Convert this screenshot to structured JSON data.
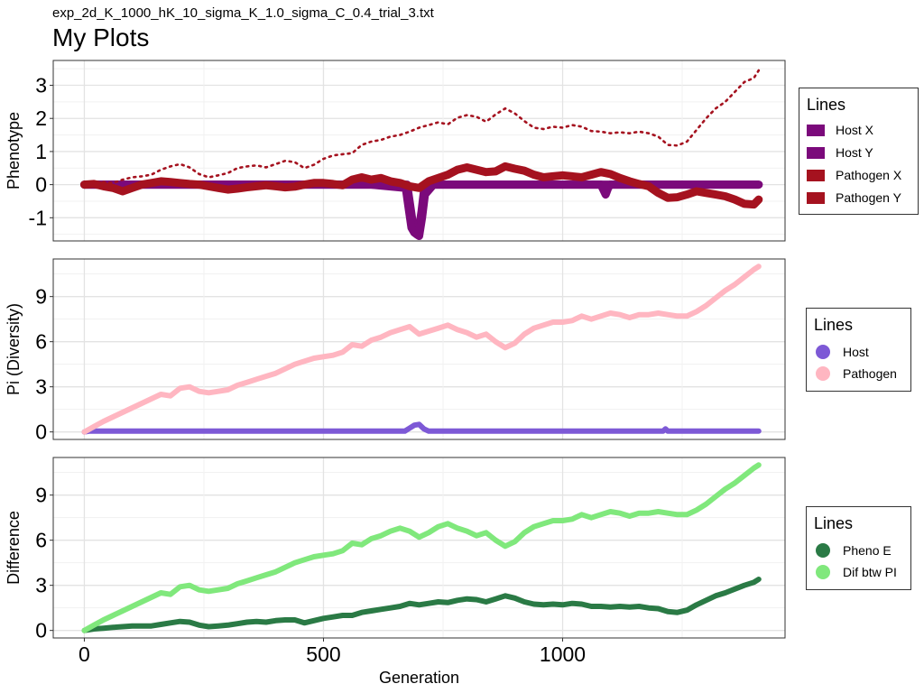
{
  "header": {
    "subtitle": "exp_2d_K_1000_hK_10_sigma_K_1.0_sigma_C_0.4_trial_3.txt",
    "title": "My Plots"
  },
  "colors": {
    "host_x": "#7b0a7b",
    "host_y": "#7b0a7b",
    "pathogen_x": "#a5121f",
    "pathogen_y": "#a5121f",
    "pi_host": "#7d59d6",
    "pi_pathogen": "#ffb6c1",
    "pheno_e": "#2a7a45",
    "dif_pi": "#80e87c"
  },
  "legends": [
    {
      "title": "Lines",
      "items": [
        "Host X",
        "Host Y",
        "Pathogen X",
        "Pathogen Y"
      ]
    },
    {
      "title": "Lines",
      "items": [
        "Host",
        "Pathogen"
      ]
    },
    {
      "title": "Lines",
      "items": [
        "Pheno E",
        "Dif btw PI"
      ]
    }
  ],
  "chart_data": [
    {
      "type": "line",
      "title": "",
      "xlabel": "",
      "ylabel": "Phenotype",
      "xlim": [
        -65,
        1465
      ],
      "ylim": [
        -1.7,
        3.75
      ],
      "grid": true,
      "legend_position": "right",
      "yticks": [
        -1,
        0,
        1,
        2,
        3
      ],
      "ytick_labels": [
        "-1",
        "0",
        "1",
        "2",
        "3"
      ],
      "x_gridlines": [
        0,
        500,
        1000
      ],
      "series": [
        {
          "name": "Host X",
          "style": "thick",
          "x": [
            0,
            100,
            200,
            300,
            400,
            500,
            600,
            660,
            675,
            680,
            686,
            690,
            694,
            700,
            705,
            710,
            725,
            800,
            900,
            1000,
            1080,
            1085,
            1090,
            1095,
            1100,
            1200,
            1300,
            1410
          ],
          "values": [
            0,
            0,
            0,
            0,
            0,
            0,
            0,
            0,
            0,
            -0.5,
            -1.1,
            -1.3,
            -1.4,
            -1.3,
            -0.8,
            -0.2,
            0,
            0,
            0,
            0,
            0,
            -0.15,
            -0.3,
            -0.1,
            0,
            0,
            0,
            0
          ]
        },
        {
          "name": "Host Y",
          "style": "thick",
          "x": [
            0,
            100,
            200,
            300,
            400,
            500,
            600,
            672,
            678,
            684,
            690,
            695,
            700,
            706,
            712,
            730,
            800,
            900,
            1000,
            1100,
            1200,
            1300,
            1410
          ],
          "values": [
            0,
            0,
            0,
            0,
            0,
            0,
            0,
            -0.1,
            -0.7,
            -1.3,
            -1.45,
            -1.5,
            -1.55,
            -1.0,
            -0.3,
            0,
            0,
            0,
            0,
            0,
            0,
            0,
            0
          ]
        },
        {
          "name": "Pathogen X",
          "style": "dotted",
          "x": [
            0,
            20,
            40,
            60,
            80,
            100,
            120,
            140,
            160,
            180,
            200,
            220,
            240,
            260,
            280,
            300,
            320,
            340,
            360,
            380,
            400,
            420,
            440,
            460,
            480,
            500,
            520,
            540,
            560,
            580,
            600,
            620,
            640,
            660,
            680,
            700,
            720,
            740,
            760,
            780,
            800,
            820,
            840,
            860,
            880,
            900,
            920,
            940,
            960,
            980,
            1000,
            1020,
            1040,
            1060,
            1080,
            1100,
            1120,
            1140,
            1160,
            1180,
            1200,
            1220,
            1240,
            1260,
            1280,
            1300,
            1320,
            1340,
            1360,
            1380,
            1400,
            1410
          ],
          "values": [
            0,
            0.05,
            0.08,
            0.05,
            0.15,
            0.22,
            0.25,
            0.3,
            0.45,
            0.55,
            0.62,
            0.52,
            0.32,
            0.22,
            0.28,
            0.35,
            0.5,
            0.55,
            0.58,
            0.52,
            0.62,
            0.72,
            0.68,
            0.5,
            0.6,
            0.78,
            0.88,
            0.92,
            0.95,
            1.2,
            1.3,
            1.35,
            1.45,
            1.5,
            1.6,
            1.72,
            1.8,
            1.88,
            1.82,
            2.02,
            2.1,
            2.05,
            1.9,
            2.12,
            2.3,
            2.15,
            1.92,
            1.72,
            1.68,
            1.75,
            1.72,
            1.8,
            1.75,
            1.62,
            1.6,
            1.55,
            1.58,
            1.55,
            1.6,
            1.55,
            1.45,
            1.2,
            1.18,
            1.3,
            1.65,
            2.0,
            2.3,
            2.5,
            2.8,
            3.1,
            3.22,
            3.45
          ]
        },
        {
          "name": "Pathogen Y",
          "style": "thick",
          "x": [
            0,
            20,
            40,
            60,
            80,
            100,
            120,
            140,
            160,
            180,
            200,
            220,
            240,
            260,
            280,
            300,
            320,
            340,
            360,
            380,
            400,
            420,
            440,
            460,
            480,
            500,
            520,
            540,
            560,
            580,
            600,
            620,
            640,
            660,
            680,
            700,
            720,
            740,
            760,
            780,
            800,
            820,
            840,
            860,
            880,
            900,
            920,
            940,
            960,
            980,
            1000,
            1020,
            1040,
            1060,
            1080,
            1100,
            1120,
            1140,
            1160,
            1180,
            1200,
            1220,
            1240,
            1260,
            1280,
            1300,
            1320,
            1340,
            1360,
            1380,
            1400,
            1410
          ],
          "values": [
            0,
            0.02,
            -0.05,
            -0.1,
            -0.2,
            -0.1,
            0,
            0.05,
            0.1,
            0.08,
            0.05,
            0.02,
            0,
            -0.05,
            -0.1,
            -0.15,
            -0.12,
            -0.08,
            -0.05,
            -0.02,
            -0.05,
            -0.08,
            -0.06,
            0,
            0.05,
            0.05,
            0.02,
            -0.02,
            0.15,
            0.22,
            0.15,
            0.2,
            0.1,
            0.05,
            -0.05,
            -0.1,
            0.1,
            0.2,
            0.3,
            0.45,
            0.52,
            0.45,
            0.38,
            0.4,
            0.55,
            0.48,
            0.42,
            0.3,
            0.22,
            0.25,
            0.28,
            0.25,
            0.22,
            0.3,
            0.38,
            0.32,
            0.2,
            0.1,
            0.02,
            -0.05,
            -0.25,
            -0.4,
            -0.38,
            -0.3,
            -0.2,
            -0.25,
            -0.3,
            -0.35,
            -0.45,
            -0.58,
            -0.6,
            -0.45
          ]
        }
      ]
    },
    {
      "type": "line",
      "title": "",
      "xlabel": "",
      "ylabel": "Pi (Diversity)",
      "xlim": [
        -65,
        1465
      ],
      "ylim": [
        -0.5,
        11.5
      ],
      "grid": true,
      "legend_position": "right",
      "yticks": [
        0,
        3,
        6,
        9
      ],
      "ytick_labels": [
        "0",
        "3",
        "6",
        "9"
      ],
      "x_gridlines": [
        0,
        500,
        1000
      ],
      "series": [
        {
          "name": "Host",
          "x": [
            0,
            10,
            100,
            200,
            300,
            400,
            500,
            600,
            670,
            680,
            690,
            700,
            710,
            720,
            800,
            900,
            1000,
            1100,
            1210,
            1215,
            1220,
            1300,
            1410
          ],
          "values": [
            0,
            0.05,
            0.05,
            0.05,
            0.05,
            0.05,
            0.05,
            0.05,
            0.05,
            0.25,
            0.45,
            0.5,
            0.2,
            0.05,
            0.05,
            0.05,
            0.05,
            0.05,
            0.05,
            0.2,
            0.05,
            0.05,
            0.05
          ]
        },
        {
          "name": "Pathogen",
          "x": [
            0,
            20,
            40,
            60,
            80,
            100,
            120,
            140,
            160,
            180,
            200,
            220,
            240,
            260,
            280,
            300,
            320,
            340,
            360,
            380,
            400,
            420,
            440,
            460,
            480,
            500,
            520,
            540,
            560,
            580,
            600,
            620,
            640,
            660,
            680,
            700,
            720,
            740,
            760,
            780,
            800,
            820,
            840,
            860,
            880,
            900,
            920,
            940,
            960,
            980,
            1000,
            1020,
            1040,
            1060,
            1080,
            1100,
            1120,
            1140,
            1160,
            1180,
            1200,
            1220,
            1240,
            1260,
            1280,
            1300,
            1320,
            1340,
            1360,
            1380,
            1400,
            1410
          ],
          "values": [
            0,
            0.35,
            0.7,
            1.0,
            1.3,
            1.6,
            1.9,
            2.2,
            2.5,
            2.4,
            2.9,
            3.0,
            2.7,
            2.6,
            2.7,
            2.8,
            3.1,
            3.3,
            3.5,
            3.7,
            3.9,
            4.2,
            4.5,
            4.7,
            4.9,
            5.0,
            5.1,
            5.3,
            5.8,
            5.7,
            6.1,
            6.3,
            6.6,
            6.8,
            7.0,
            6.5,
            6.7,
            6.9,
            7.1,
            6.8,
            6.6,
            6.3,
            6.5,
            6.0,
            5.6,
            5.9,
            6.5,
            6.9,
            7.1,
            7.3,
            7.3,
            7.4,
            7.7,
            7.5,
            7.7,
            7.9,
            7.8,
            7.6,
            7.8,
            7.8,
            7.9,
            7.8,
            7.7,
            7.7,
            8.0,
            8.4,
            8.9,
            9.4,
            9.8,
            10.3,
            10.8,
            11.0
          ]
        }
      ]
    },
    {
      "type": "line",
      "title": "",
      "xlabel": "Generation",
      "ylabel": "Difference",
      "xlim": [
        -65,
        1465
      ],
      "ylim": [
        -0.5,
        11.5
      ],
      "grid": true,
      "legend_position": "right",
      "yticks": [
        0,
        3,
        6,
        9
      ],
      "ytick_labels": [
        "0",
        "3",
        "6",
        "9"
      ],
      "xticks": [
        0,
        500,
        1000
      ],
      "xtick_labels": [
        "0",
        "500",
        "1000"
      ],
      "series": [
        {
          "name": "Pheno E",
          "x": [
            0,
            20,
            40,
            60,
            80,
            100,
            120,
            140,
            160,
            180,
            200,
            220,
            240,
            260,
            280,
            300,
            320,
            340,
            360,
            380,
            400,
            420,
            440,
            460,
            480,
            500,
            520,
            540,
            560,
            580,
            600,
            620,
            640,
            660,
            680,
            700,
            720,
            740,
            760,
            780,
            800,
            820,
            840,
            860,
            880,
            900,
            920,
            940,
            960,
            980,
            1000,
            1020,
            1040,
            1060,
            1080,
            1100,
            1120,
            1140,
            1160,
            1180,
            1200,
            1220,
            1240,
            1260,
            1280,
            1300,
            1320,
            1340,
            1360,
            1380,
            1400,
            1410
          ],
          "values": [
            0,
            0.1,
            0.15,
            0.2,
            0.25,
            0.3,
            0.3,
            0.3,
            0.4,
            0.5,
            0.6,
            0.55,
            0.35,
            0.25,
            0.3,
            0.35,
            0.45,
            0.55,
            0.6,
            0.55,
            0.65,
            0.7,
            0.7,
            0.5,
            0.65,
            0.8,
            0.9,
            1.0,
            1.0,
            1.2,
            1.3,
            1.4,
            1.5,
            1.6,
            1.8,
            1.7,
            1.8,
            1.9,
            1.85,
            2.0,
            2.1,
            2.05,
            1.9,
            2.1,
            2.3,
            2.15,
            1.9,
            1.75,
            1.7,
            1.75,
            1.7,
            1.8,
            1.75,
            1.6,
            1.6,
            1.55,
            1.6,
            1.55,
            1.6,
            1.5,
            1.45,
            1.25,
            1.2,
            1.35,
            1.7,
            2.0,
            2.3,
            2.5,
            2.75,
            3.0,
            3.2,
            3.4
          ]
        },
        {
          "name": "Dif btw PI",
          "x": [
            0,
            20,
            40,
            60,
            80,
            100,
            120,
            140,
            160,
            180,
            200,
            220,
            240,
            260,
            280,
            300,
            320,
            340,
            360,
            380,
            400,
            420,
            440,
            460,
            480,
            500,
            520,
            540,
            560,
            580,
            600,
            620,
            640,
            660,
            680,
            700,
            720,
            740,
            760,
            780,
            800,
            820,
            840,
            860,
            880,
            900,
            920,
            940,
            960,
            980,
            1000,
            1020,
            1040,
            1060,
            1080,
            1100,
            1120,
            1140,
            1160,
            1180,
            1200,
            1220,
            1240,
            1260,
            1280,
            1300,
            1320,
            1340,
            1360,
            1380,
            1400,
            1410
          ],
          "values": [
            0,
            0.35,
            0.7,
            1.0,
            1.3,
            1.6,
            1.9,
            2.2,
            2.5,
            2.4,
            2.9,
            3.0,
            2.7,
            2.6,
            2.7,
            2.8,
            3.1,
            3.3,
            3.5,
            3.7,
            3.9,
            4.2,
            4.5,
            4.7,
            4.9,
            5.0,
            5.1,
            5.3,
            5.8,
            5.7,
            6.1,
            6.3,
            6.6,
            6.8,
            6.6,
            6.2,
            6.5,
            6.9,
            7.1,
            6.8,
            6.6,
            6.3,
            6.5,
            6.0,
            5.6,
            5.9,
            6.5,
            6.9,
            7.1,
            7.3,
            7.3,
            7.4,
            7.7,
            7.5,
            7.7,
            7.9,
            7.8,
            7.6,
            7.8,
            7.8,
            7.9,
            7.8,
            7.7,
            7.7,
            8.0,
            8.4,
            8.9,
            9.4,
            9.8,
            10.3,
            10.8,
            11.0
          ]
        }
      ]
    }
  ]
}
